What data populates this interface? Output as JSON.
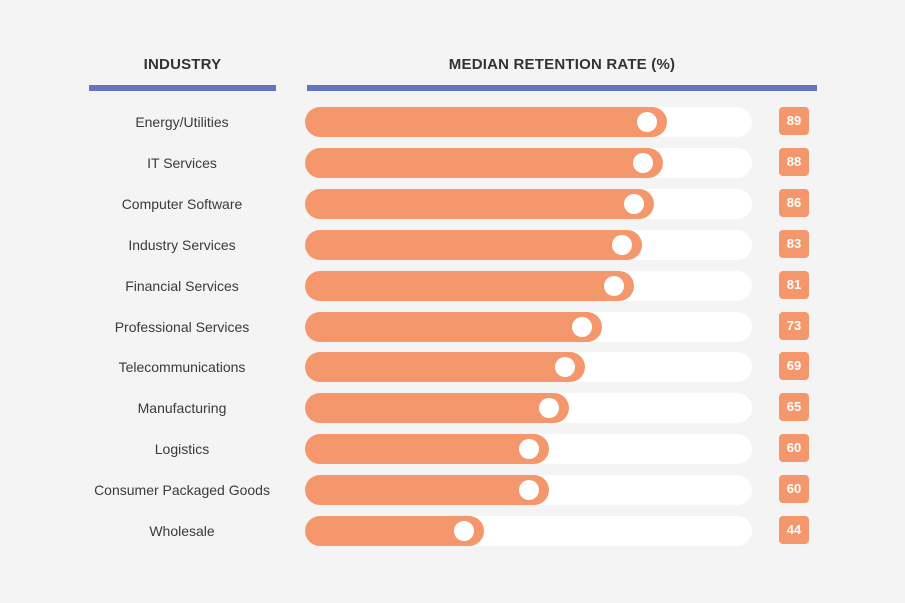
{
  "headers": {
    "industry": "INDUSTRY",
    "rate": "MEDIAN RETENTION RATE (%)"
  },
  "colors": {
    "background": "#f4f4f4",
    "accent_rule": "#6674bd",
    "bar_fill": "#f4976c",
    "bar_track": "#ffffff",
    "badge_text": "#ffffff",
    "label_text": "#3a3a3a"
  },
  "chart_data": {
    "type": "bar",
    "orientation": "horizontal",
    "title": "",
    "xlabel": "MEDIAN RETENTION RATE (%)",
    "ylabel": "INDUSTRY",
    "xlim": [
      0,
      110
    ],
    "grid": false,
    "categories": [
      "Energy/Utilities",
      "IT Services",
      "Computer Software",
      "Industry Services",
      "Financial Services",
      "Professional Services",
      "Telecommunications",
      "Manufacturing",
      "Logistics",
      "Consumer Packaged Goods",
      "Wholesale"
    ],
    "values": [
      89,
      88,
      86,
      83,
      81,
      73,
      69,
      65,
      60,
      60,
      44
    ]
  }
}
